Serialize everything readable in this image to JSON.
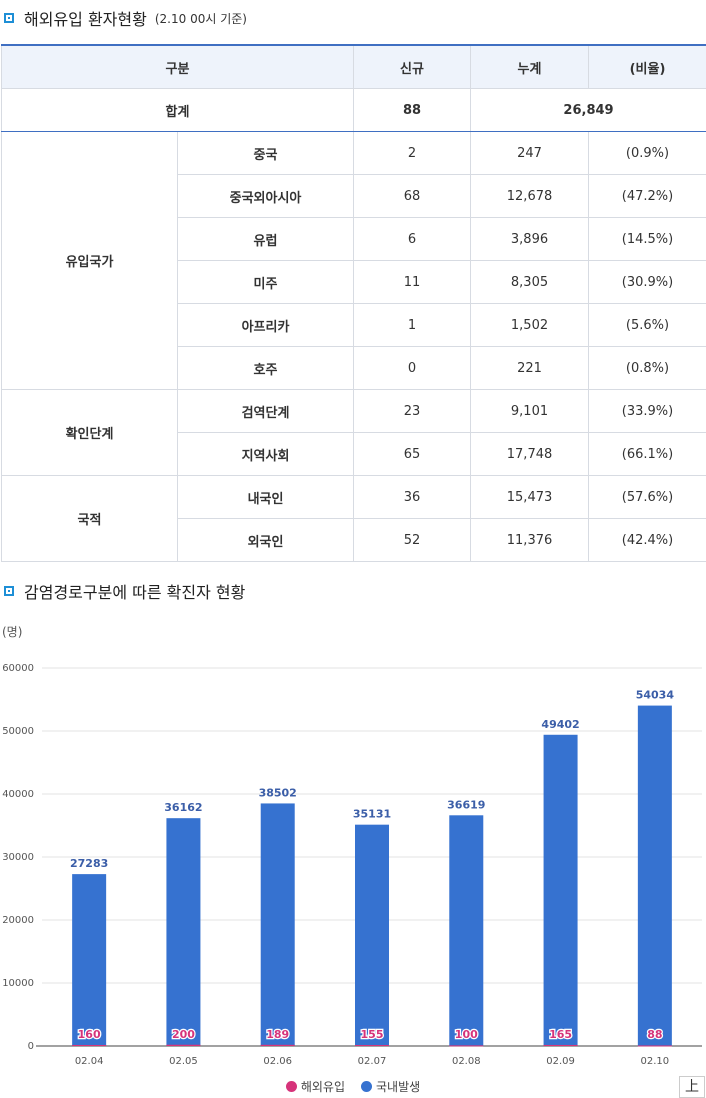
{
  "section1": {
    "title": "해외유입 환자현황",
    "subtitle": "(2.10 00시 기준)"
  },
  "table": {
    "headers": [
      "구분",
      "신규",
      "누계",
      "(비율)"
    ],
    "total": {
      "label": "합계",
      "new": "88",
      "cumulative": "26,849"
    },
    "groups": [
      {
        "label": "유입국가",
        "rows": [
          {
            "name": "중국",
            "new": "2",
            "cum": "247",
            "ratio": "(0.9%)"
          },
          {
            "name": "중국외아시아",
            "new": "68",
            "cum": "12,678",
            "ratio": "(47.2%)"
          },
          {
            "name": "유럽",
            "new": "6",
            "cum": "3,896",
            "ratio": "(14.5%)"
          },
          {
            "name": "미주",
            "new": "11",
            "cum": "8,305",
            "ratio": "(30.9%)"
          },
          {
            "name": "아프리카",
            "new": "1",
            "cum": "1,502",
            "ratio": "(5.6%)"
          },
          {
            "name": "호주",
            "new": "0",
            "cum": "221",
            "ratio": "(0.8%)"
          }
        ]
      },
      {
        "label": "확인단계",
        "rows": [
          {
            "name": "검역단계",
            "new": "23",
            "cum": "9,101",
            "ratio": "(33.9%)"
          },
          {
            "name": "지역사회",
            "new": "65",
            "cum": "17,748",
            "ratio": "(66.1%)"
          }
        ]
      },
      {
        "label": "국적",
        "rows": [
          {
            "name": "내국인",
            "new": "36",
            "cum": "15,473",
            "ratio": "(57.6%)"
          },
          {
            "name": "외국인",
            "new": "52",
            "cum": "11,376",
            "ratio": "(42.4%)"
          }
        ]
      }
    ]
  },
  "section2": {
    "title": "감염경로구분에 따른 확진자 현황"
  },
  "chart_data": {
    "type": "bar",
    "unit_label": "(명)",
    "categories": [
      "02.04",
      "02.05",
      "02.06",
      "02.07",
      "02.08",
      "02.09",
      "02.10"
    ],
    "series": [
      {
        "name": "해외유입",
        "values": [
          160,
          200,
          189,
          155,
          100,
          165,
          88
        ],
        "color": "#d6337a"
      },
      {
        "name": "국내발생",
        "values": [
          27283,
          36162,
          38502,
          35131,
          36619,
          49402,
          54034
        ],
        "color": "#3672d0"
      }
    ],
    "ylim": [
      0,
      60000
    ],
    "yticks": [
      "0",
      "10000",
      "20000",
      "30000",
      "40000",
      "50000",
      "60000"
    ],
    "grid": true,
    "legend_position": "bottom"
  },
  "ui": {
    "top_button": "上"
  }
}
